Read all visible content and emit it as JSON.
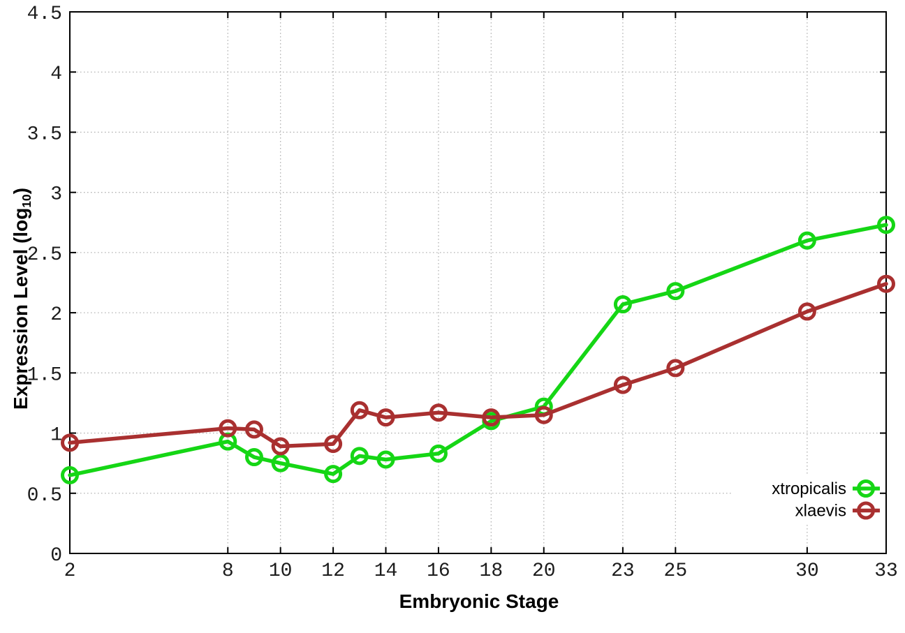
{
  "figure_title": "",
  "axes": {
    "x": {
      "label": "Embryonic Stage",
      "min": 2,
      "max": 33,
      "ticks": [
        2,
        8,
        10,
        12,
        14,
        16,
        18,
        20,
        23,
        25,
        30,
        33
      ]
    },
    "y": {
      "label_prefix": "Expression Level (log",
      "label_subscript": "10",
      "label_suffix": ")",
      "min": 0,
      "max": 4.5,
      "ticks": [
        0,
        0.5,
        1,
        1.5,
        2,
        2.5,
        3,
        3.5,
        4,
        4.5
      ],
      "tick_labels": [
        "0",
        "0.5",
        "1",
        "1.5",
        "2",
        "2.5",
        "3",
        "3.5",
        "4",
        "4.5"
      ]
    }
  },
  "chart_data": {
    "type": "line",
    "title": "",
    "xlabel": "Embryonic Stage",
    "ylabel": "Expression Level (log10)",
    "xlim": [
      2,
      33
    ],
    "ylim": [
      0,
      4.5
    ],
    "grid": true,
    "grid_style": "dotted",
    "legend_position": "inside-bottom-right",
    "marker": "open-circle",
    "x": [
      2,
      8,
      9,
      10,
      12,
      13,
      14,
      16,
      18,
      20,
      23,
      25,
      30,
      33
    ],
    "series": [
      {
        "name": "xtropicalis",
        "color": "#15d615",
        "values": [
          0.65,
          0.93,
          0.8,
          0.75,
          0.66,
          0.81,
          0.78,
          0.83,
          1.1,
          1.22,
          2.07,
          2.18,
          2.6,
          2.73
        ]
      },
      {
        "name": "xlaevis",
        "color": "#a93030",
        "values": [
          0.92,
          1.04,
          1.03,
          0.89,
          0.91,
          1.19,
          1.13,
          1.17,
          1.13,
          1.15,
          1.4,
          1.54,
          2.01,
          2.24
        ]
      }
    ]
  },
  "legend": {
    "items": [
      {
        "label": "xtropicalis",
        "color": "#15d615"
      },
      {
        "label": "xlaevis",
        "color": "#a93030"
      }
    ]
  },
  "colors": {
    "background": "#ffffff",
    "border": "#000000",
    "grid": "#b0b0b0",
    "tick_text": "#1c1c1c",
    "label_text": "#000000"
  }
}
